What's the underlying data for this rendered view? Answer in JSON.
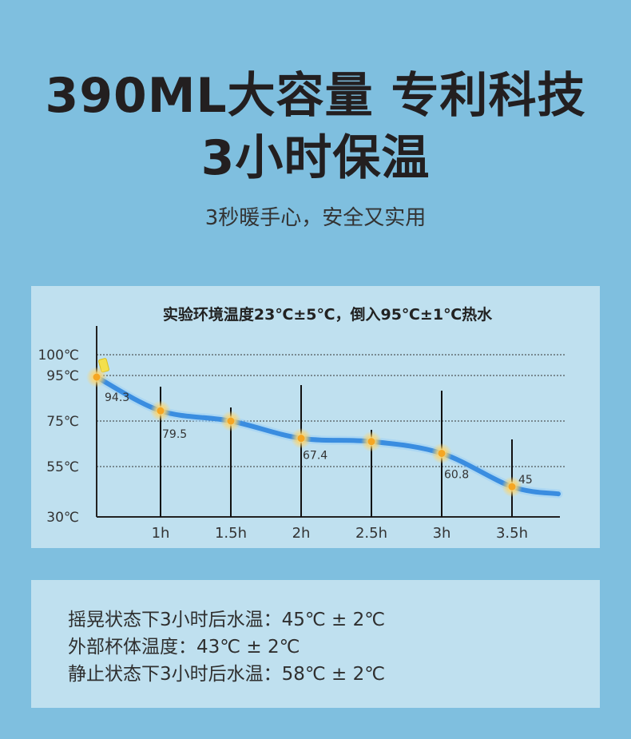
{
  "header": {
    "title_line1": "390ML大容量 专利科技",
    "title_line2": "3小时保温",
    "subtitle": "3秒暖手心，安全又实用"
  },
  "chart_data": {
    "type": "line",
    "title": "实验环境温度23℃±5℃，倒入95℃±1℃热水",
    "x": [
      0,
      1,
      1.5,
      2,
      2.5,
      3,
      3.5
    ],
    "x_tick_labels": [
      "1h",
      "1.5h",
      "2h",
      "2.5h",
      "3h",
      "3.5h"
    ],
    "x_tick_values": [
      1,
      1.5,
      2,
      2.5,
      3,
      3.5
    ],
    "values": [
      94.3,
      79.5,
      75,
      67.4,
      66,
      60.8,
      45
    ],
    "data_labels": [
      "94.3",
      "79.5",
      "",
      "67.4",
      "",
      "60.8",
      "45"
    ],
    "y_tick_labels": [
      "100℃",
      "95℃",
      "75℃",
      "55℃",
      "30℃"
    ],
    "y_tick_values": [
      100,
      95,
      75,
      55,
      30
    ],
    "ylim": [
      30,
      100
    ],
    "grid": "dotted horizontal",
    "line_color": "#3a8de0",
    "marker_color": "#f5a623"
  },
  "notes": [
    "摇晃状态下3小时后水温：45℃ ± 2℃",
    "外部杯体温度：43℃ ± 2℃",
    "静止状态下3小时后水温：58℃ ± 2℃"
  ]
}
